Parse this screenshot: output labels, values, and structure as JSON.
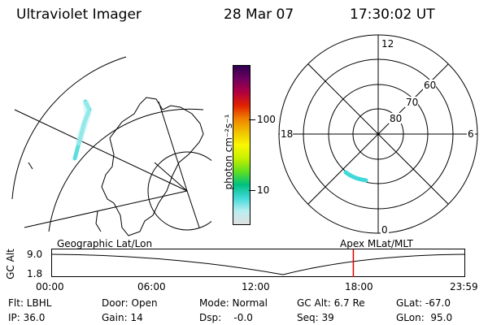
{
  "header": {
    "title": "Ultraviolet Imager",
    "date": "28 Mar 07",
    "time": "17:30:02 UT"
  },
  "colorbar": {
    "label": "photon cm⁻²s⁻¹",
    "ticks": [
      "100",
      "10"
    ],
    "colors": [
      "#e0e0e0",
      "#b8eef0",
      "#40d8d8",
      "#00c080",
      "#60e020",
      "#c8f000",
      "#f8f800",
      "#f0c000",
      "#f08000",
      "#e02000",
      "#b00040",
      "#700060",
      "#300050"
    ]
  },
  "polar_plot": {
    "clock_labels": {
      "top": "12",
      "left": "18",
      "right": "6",
      "bottom": "0"
    },
    "lat_labels": [
      "80",
      "70",
      "60"
    ]
  },
  "geo_plot": {
    "caption": "Geographic Lat/Lon"
  },
  "apex_caption": "Apex  MLat/MLT",
  "altitude_strip": {
    "axis_label": "GC Alt",
    "ymax_label": "9.0",
    "ymin_label": "1.8",
    "time_ticks": [
      "00:00",
      "06:00",
      "12:00",
      "18:00",
      "23:59"
    ],
    "current_time_fraction": 0.7292,
    "marker_color": "#e00000"
  },
  "info": {
    "filter": "Flt: LBHL",
    "door": "Door: Open",
    "mode": "Mode: Normal",
    "gc_alt": "GC Alt: 6.7 Re",
    "glat": "GLat: -67.0",
    "ip": "IP: 36.0",
    "gain": "Gain: 14",
    "dsp": "Dsp:    -0.0",
    "seq": "Seq: 39",
    "glon": "GLon:  95.0"
  }
}
